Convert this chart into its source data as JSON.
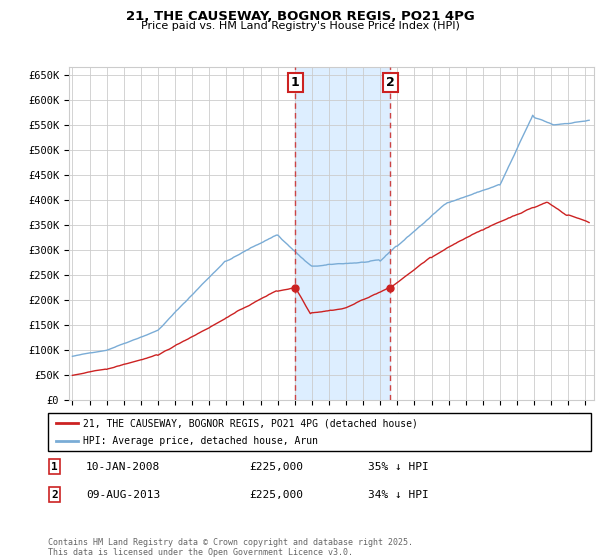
{
  "title": "21, THE CAUSEWAY, BOGNOR REGIS, PO21 4PG",
  "subtitle": "Price paid vs. HM Land Registry's House Price Index (HPI)",
  "ytick_labels": [
    "£0",
    "£50K",
    "£100K",
    "£150K",
    "£200K",
    "£250K",
    "£300K",
    "£350K",
    "£400K",
    "£450K",
    "£500K",
    "£550K",
    "£600K",
    "£650K"
  ],
  "yticks": [
    0,
    50000,
    100000,
    150000,
    200000,
    250000,
    300000,
    350000,
    400000,
    450000,
    500000,
    550000,
    600000,
    650000
  ],
  "background_color": "#ffffff",
  "grid_color": "#cccccc",
  "hpi_color": "#7aacd6",
  "price_color": "#cc2222",
  "annotation_box_color": "#cc2222",
  "shaded_region_color": "#ddeeff",
  "dashed_line_color": "#cc4444",
  "legend_label_red": "21, THE CAUSEWAY, BOGNOR REGIS, PO21 4PG (detached house)",
  "legend_label_blue": "HPI: Average price, detached house, Arun",
  "marker1_date": "10-JAN-2008",
  "marker1_price": "£225,000",
  "marker1_hpi": "35% ↓ HPI",
  "marker2_date": "09-AUG-2013",
  "marker2_price": "£225,000",
  "marker2_hpi": "34% ↓ HPI",
  "footnote": "Contains HM Land Registry data © Crown copyright and database right 2025.\nThis data is licensed under the Open Government Licence v3.0.",
  "marker1_x": 2008.04,
  "marker2_x": 2013.59,
  "xmin": 1994.8,
  "xmax": 2025.5,
  "ymin": 0,
  "ymax": 650000
}
